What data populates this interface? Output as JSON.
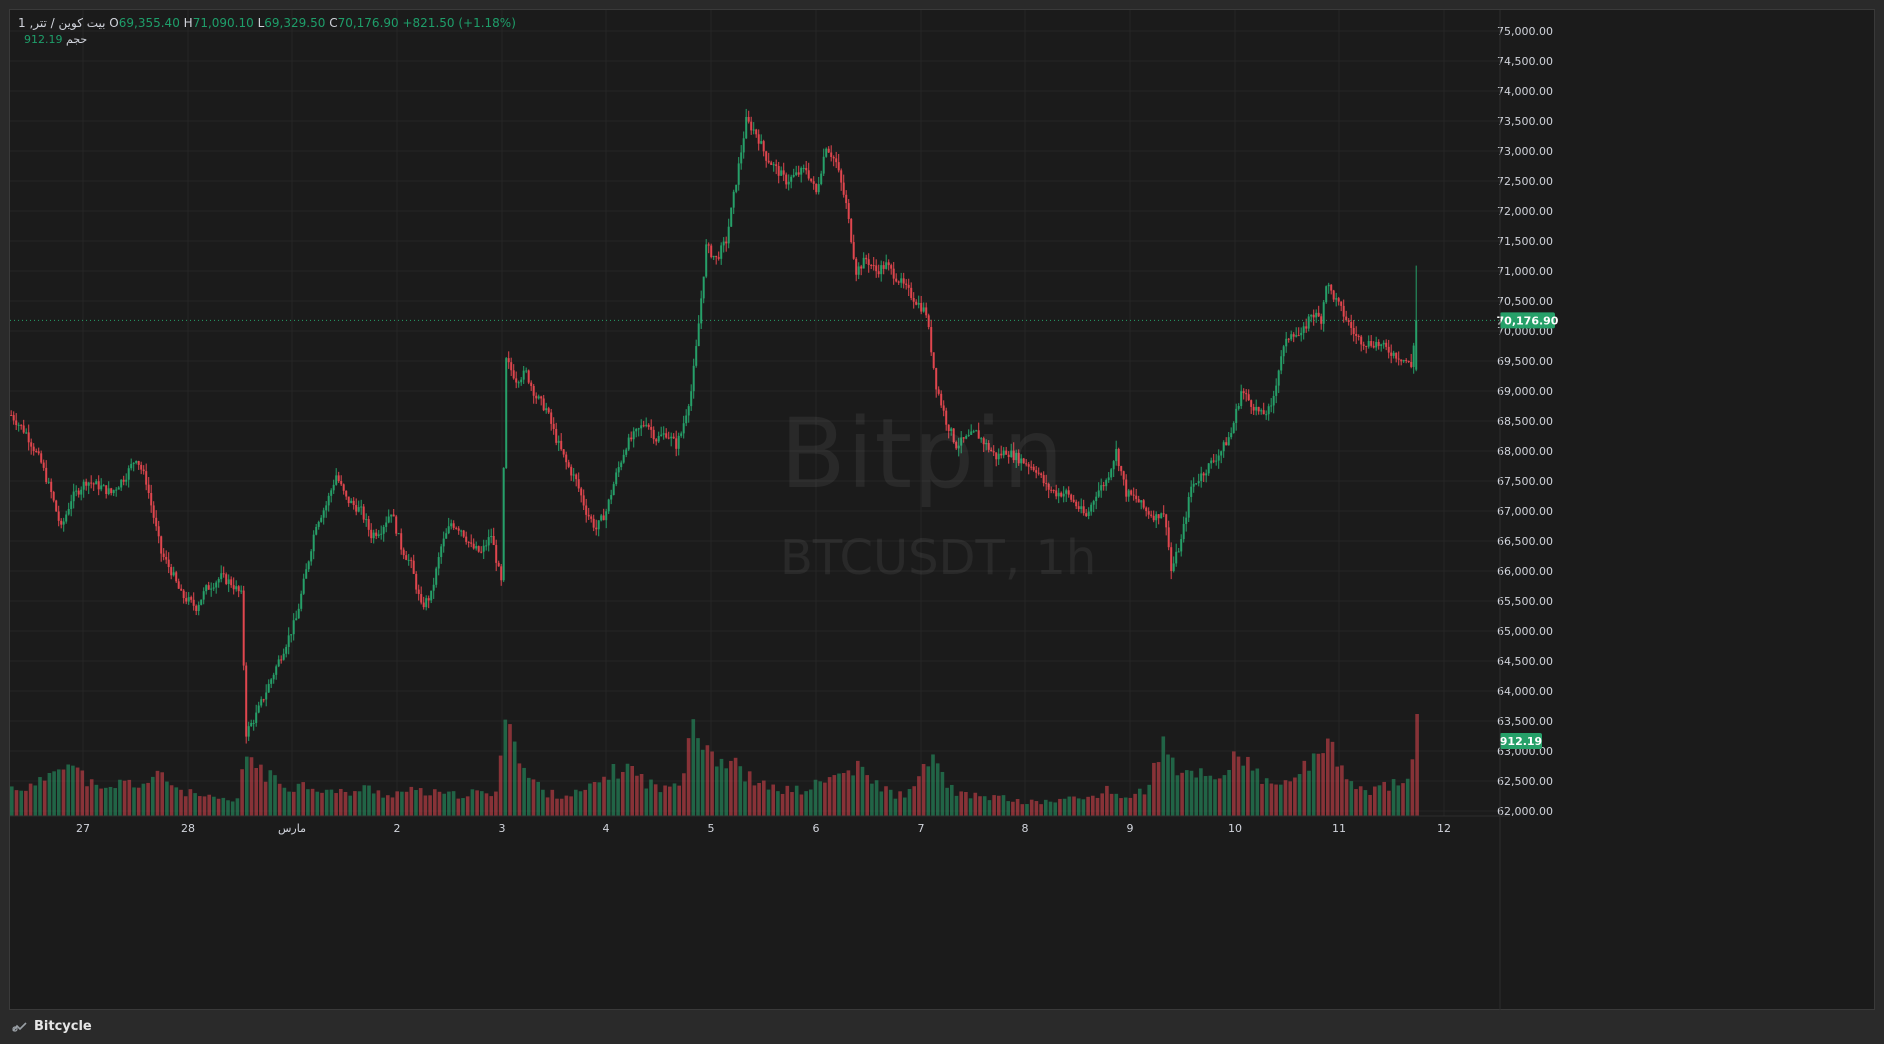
{
  "legend": {
    "symbol": "بيت كوين / تتر, 1",
    "open_label": "O",
    "open": "69,355.40",
    "high_label": "H",
    "high": "71,090.10",
    "low_label": "L",
    "low": "69,329.50",
    "close_label": "C",
    "close": "70,176.90",
    "change": "+821.50 (+1.18%)",
    "volume_label": "حجم",
    "volume": "912.19"
  },
  "watermark": {
    "title": "Bitpin",
    "subtitle": "BTCUSDT, 1h"
  },
  "footer": {
    "brand": "Bitcycle",
    "brand_icon": "chart-line-icon"
  },
  "colors": {
    "up": "#26a069",
    "down": "#e0464e",
    "background": "#1b1b1b",
    "grid": "#262626",
    "price_tag": "#26a069",
    "axis_text": "#d1d4dc"
  },
  "chart_data": {
    "type": "candlestick",
    "symbol": "BTCUSDT",
    "interval": "1h",
    "ylim": [
      62000,
      75000
    ],
    "y_ticks": [
      "62,000.00",
      "62,500.00",
      "63,000.00",
      "63,500.00",
      "64,000.00",
      "64,500.00",
      "65,000.00",
      "65,500.00",
      "66,000.00",
      "66,500.00",
      "67,000.00",
      "67,500.00",
      "68,000.00",
      "68,500.00",
      "69,000.00",
      "69,500.00",
      "70,000.00",
      "70,500.00",
      "71,000.00",
      "71,500.00",
      "72,000.00",
      "72,500.00",
      "73,000.00",
      "73,500.00",
      "74,000.00",
      "74,500.00",
      "75,000.00"
    ],
    "x_ticks": [
      "27",
      "28",
      "مارس",
      "2",
      "3",
      "4",
      "5",
      "6",
      "7",
      "8",
      "9",
      "10",
      "11",
      "12"
    ],
    "last_price": 70176.9,
    "last_price_label": "70,176.90",
    "last_volume_label": "912.19",
    "price_path": [
      [
        0,
        68600
      ],
      [
        6,
        68300
      ],
      [
        12,
        67800
      ],
      [
        16,
        67300
      ],
      [
        20,
        66700
      ],
      [
        24,
        67200
      ],
      [
        30,
        67500
      ],
      [
        36,
        67400
      ],
      [
        40,
        67300
      ],
      [
        46,
        67600
      ],
      [
        50,
        67900
      ],
      [
        54,
        67500
      ],
      [
        60,
        66300
      ],
      [
        64,
        66000
      ],
      [
        68,
        65600
      ],
      [
        74,
        65400
      ],
      [
        78,
        65700
      ],
      [
        84,
        65900
      ],
      [
        88,
        65800
      ],
      [
        92,
        65600
      ],
      [
        94,
        63300
      ],
      [
        98,
        63600
      ],
      [
        102,
        64000
      ],
      [
        108,
        64600
      ],
      [
        114,
        65200
      ],
      [
        118,
        66000
      ],
      [
        122,
        66800
      ],
      [
        126,
        67100
      ],
      [
        130,
        67600
      ],
      [
        134,
        67200
      ],
      [
        140,
        67000
      ],
      [
        144,
        66600
      ],
      [
        148,
        66700
      ],
      [
        152,
        67000
      ],
      [
        156,
        66400
      ],
      [
        160,
        66100
      ],
      [
        164,
        65400
      ],
      [
        168,
        65600
      ],
      [
        172,
        66400
      ],
      [
        176,
        66800
      ],
      [
        180,
        66700
      ],
      [
        184,
        66400
      ],
      [
        188,
        66300
      ],
      [
        192,
        66600
      ],
      [
        196,
        65800
      ],
      [
        198,
        69500
      ],
      [
        202,
        69200
      ],
      [
        206,
        69300
      ],
      [
        210,
        68900
      ],
      [
        214,
        68700
      ],
      [
        218,
        68200
      ],
      [
        222,
        67800
      ],
      [
        226,
        67500
      ],
      [
        230,
        67000
      ],
      [
        234,
        66700
      ],
      [
        238,
        67000
      ],
      [
        242,
        67600
      ],
      [
        246,
        68100
      ],
      [
        250,
        68300
      ],
      [
        254,
        68500
      ],
      [
        258,
        68200
      ],
      [
        262,
        68300
      ],
      [
        266,
        68100
      ],
      [
        268,
        68300
      ],
      [
        272,
        69000
      ],
      [
        274,
        69700
      ],
      [
        278,
        71400
      ],
      [
        282,
        71200
      ],
      [
        286,
        71500
      ],
      [
        290,
        72500
      ],
      [
        294,
        73500
      ],
      [
        298,
        73300
      ],
      [
        302,
        72900
      ],
      [
        306,
        72700
      ],
      [
        310,
        72500
      ],
      [
        314,
        72600
      ],
      [
        318,
        72700
      ],
      [
        322,
        72300
      ],
      [
        326,
        73100
      ],
      [
        330,
        72800
      ],
      [
        334,
        72100
      ],
      [
        338,
        71000
      ],
      [
        342,
        71200
      ],
      [
        346,
        71000
      ],
      [
        350,
        71100
      ],
      [
        354,
        70900
      ],
      [
        358,
        70700
      ],
      [
        362,
        70500
      ],
      [
        366,
        70300
      ],
      [
        370,
        69100
      ],
      [
        374,
        68500
      ],
      [
        378,
        68100
      ],
      [
        382,
        68200
      ],
      [
        386,
        68300
      ],
      [
        390,
        68100
      ],
      [
        394,
        67900
      ],
      [
        398,
        68000
      ],
      [
        402,
        67900
      ],
      [
        406,
        67800
      ],
      [
        410,
        67700
      ],
      [
        414,
        67400
      ],
      [
        418,
        67300
      ],
      [
        422,
        67300
      ],
      [
        426,
        67100
      ],
      [
        430,
        66900
      ],
      [
        434,
        67300
      ],
      [
        438,
        67500
      ],
      [
        442,
        68000
      ],
      [
        446,
        67300
      ],
      [
        450,
        67200
      ],
      [
        454,
        67000
      ],
      [
        458,
        66900
      ],
      [
        460,
        67000
      ],
      [
        462,
        66800
      ],
      [
        464,
        66000
      ],
      [
        468,
        66500
      ],
      [
        472,
        67400
      ],
      [
        476,
        67600
      ],
      [
        480,
        67800
      ],
      [
        484,
        68000
      ],
      [
        488,
        68300
      ],
      [
        492,
        69000
      ],
      [
        496,
        68800
      ],
      [
        500,
        68600
      ],
      [
        504,
        68700
      ],
      [
        508,
        69600
      ],
      [
        512,
        70000
      ],
      [
        516,
        69900
      ],
      [
        520,
        70300
      ],
      [
        524,
        70200
      ],
      [
        526,
        70800
      ],
      [
        530,
        70500
      ],
      [
        534,
        70200
      ],
      [
        538,
        69900
      ],
      [
        542,
        69800
      ],
      [
        546,
        69800
      ],
      [
        550,
        69700
      ],
      [
        554,
        69600
      ],
      [
        558,
        69500
      ],
      [
        560,
        69400
      ],
      [
        562,
        70180
      ]
    ],
    "volume_path": [
      [
        0,
        620
      ],
      [
        10,
        650
      ],
      [
        20,
        1300
      ],
      [
        28,
        900
      ],
      [
        36,
        520
      ],
      [
        44,
        750
      ],
      [
        52,
        700
      ],
      [
        60,
        900
      ],
      [
        68,
        550
      ],
      [
        80,
        380
      ],
      [
        90,
        320
      ],
      [
        94,
        1400
      ],
      [
        102,
        900
      ],
      [
        110,
        650
      ],
      [
        118,
        700
      ],
      [
        126,
        560
      ],
      [
        134,
        500
      ],
      [
        142,
        620
      ],
      [
        150,
        460
      ],
      [
        158,
        560
      ],
      [
        166,
        520
      ],
      [
        176,
        460
      ],
      [
        186,
        520
      ],
      [
        194,
        460
      ],
      [
        196,
        1800
      ],
      [
        198,
        2900
      ],
      [
        202,
        1300
      ],
      [
        206,
        900
      ],
      [
        214,
        500
      ],
      [
        222,
        460
      ],
      [
        230,
        560
      ],
      [
        238,
        900
      ],
      [
        246,
        1100
      ],
      [
        254,
        750
      ],
      [
        262,
        560
      ],
      [
        268,
        900
      ],
      [
        272,
        2300
      ],
      [
        276,
        1750
      ],
      [
        282,
        1300
      ],
      [
        290,
        1100
      ],
      [
        298,
        700
      ],
      [
        306,
        600
      ],
      [
        316,
        560
      ],
      [
        322,
        700
      ],
      [
        330,
        900
      ],
      [
        338,
        1050
      ],
      [
        346,
        700
      ],
      [
        354,
        450
      ],
      [
        362,
        600
      ],
      [
        366,
        1400
      ],
      [
        372,
        900
      ],
      [
        378,
        460
      ],
      [
        386,
        450
      ],
      [
        396,
        400
      ],
      [
        406,
        300
      ],
      [
        414,
        320
      ],
      [
        422,
        380
      ],
      [
        430,
        400
      ],
      [
        438,
        560
      ],
      [
        446,
        400
      ],
      [
        454,
        600
      ],
      [
        460,
        1600
      ],
      [
        466,
        900
      ],
      [
        474,
        1000
      ],
      [
        482,
        800
      ],
      [
        490,
        1400
      ],
      [
        498,
        900
      ],
      [
        506,
        600
      ],
      [
        516,
        1050
      ],
      [
        524,
        1250
      ],
      [
        528,
        1600
      ],
      [
        534,
        800
      ],
      [
        542,
        500
      ],
      [
        550,
        700
      ],
      [
        558,
        700
      ],
      [
        562,
        1900
      ]
    ]
  }
}
